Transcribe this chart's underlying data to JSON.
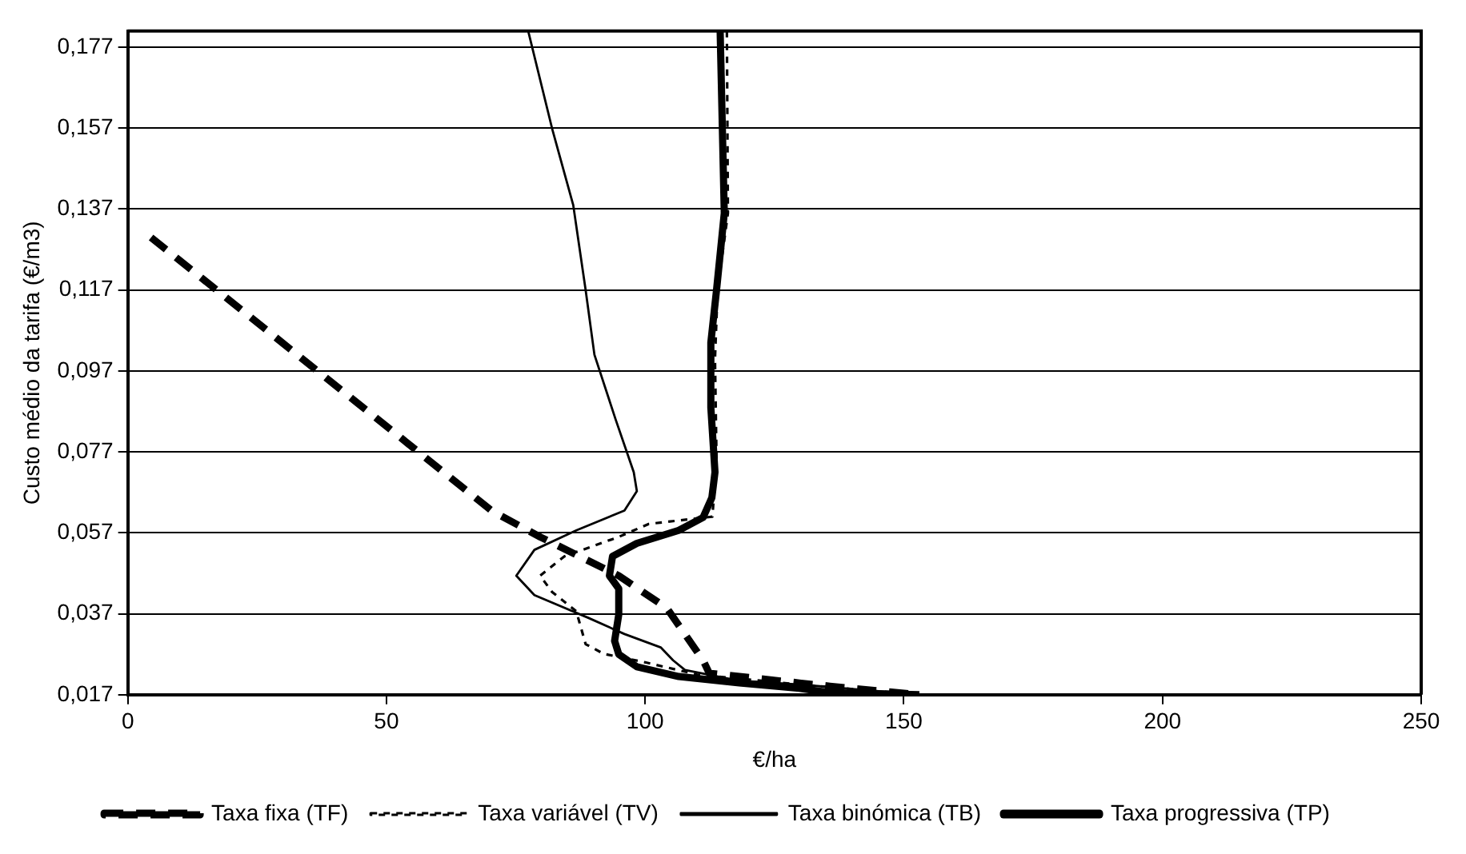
{
  "chart_data": {
    "type": "line",
    "xlabel": "€/ha",
    "ylabel": "Custo médio da tarifa (€/m3)",
    "xlim": [
      0,
      250
    ],
    "xticks": [
      0,
      50,
      100,
      150,
      200,
      250
    ],
    "ylim": [
      0.017,
      0.181
    ],
    "yticks": [
      {
        "value": 0.017,
        "label": "0,017"
      },
      {
        "value": 0.037,
        "label": "0,037"
      },
      {
        "value": 0.057,
        "label": "0,057"
      },
      {
        "value": 0.077,
        "label": "0,077"
      },
      {
        "value": 0.097,
        "label": "0,097"
      },
      {
        "value": 0.117,
        "label": "0,117"
      },
      {
        "value": 0.137,
        "label": "0,137"
      },
      {
        "value": 0.157,
        "label": "0,157"
      },
      {
        "value": 0.177,
        "label": "0,177"
      }
    ],
    "grid": "y",
    "legend": "bottom",
    "marker": "none",
    "series": [
      {
        "name": "Taxa fixa (TF)",
        "color": "#000000",
        "line_style": "dashed",
        "x": [
          4.5,
          70.4,
          79.7,
          94.9,
          104.2,
          111.2,
          112.4,
          129.8,
          135.7,
          153
        ],
        "values": [
          0.13,
          0.0624,
          0.056,
          0.0464,
          0.0384,
          0.0255,
          0.0223,
          0.0199,
          0.0191,
          0.017
        ]
      },
      {
        "name": "Taxa variável (TV)",
        "color": "#000000",
        "line_style": "dotted",
        "x": [
          115.8,
          116,
          114,
          113.5,
          113.8,
          113,
          100.7,
          94.9,
          84.4,
          79.7,
          82,
          86.7,
          88.5,
          92,
          100,
          110,
          130,
          153
        ],
        "values": [
          0.181,
          0.136,
          0.117,
          0.1,
          0.075,
          0.061,
          0.0592,
          0.056,
          0.0512,
          0.0464,
          0.0424,
          0.0376,
          0.0295,
          0.0271,
          0.025,
          0.022,
          0.0195,
          0.017
        ]
      },
      {
        "name": "Taxa binómica (TB)",
        "color": "#000000",
        "line_style": "solid",
        "x": [
          77.4,
          82,
          86.1,
          88.5,
          90.2,
          94.3,
          97.8,
          98.4,
          96,
          86.7,
          78.6,
          75.1,
          78.6,
          89,
          96,
          103,
          105.4,
          107.7,
          118,
          130,
          153
        ],
        "values": [
          0.181,
          0.157,
          0.138,
          0.117,
          0.101,
          0.085,
          0.072,
          0.0673,
          0.0625,
          0.0576,
          0.0528,
          0.0464,
          0.0416,
          0.036,
          0.032,
          0.0287,
          0.0255,
          0.0231,
          0.0205,
          0.0195,
          0.017
        ]
      },
      {
        "name": "Taxa progressiva (TP)",
        "color": "#000000",
        "line_style": "solid",
        "x": [
          114.5,
          115.3,
          113.8,
          112.7,
          112.7,
          113.5,
          112.9,
          111.2,
          106.5,
          98.4,
          93.7,
          93.1,
          94.9,
          94.9,
          94.1,
          94.9,
          98.4,
          106.5,
          118.2,
          129.8,
          135.7,
          153
        ],
        "values": [
          0.181,
          0.136,
          0.117,
          0.104,
          0.088,
          0.072,
          0.0657,
          0.0608,
          0.0576,
          0.0544,
          0.0512,
          0.0464,
          0.0432,
          0.0368,
          0.0303,
          0.027,
          0.0239,
          0.0215,
          0.0199,
          0.0186,
          0.0175,
          0.017
        ]
      }
    ]
  }
}
